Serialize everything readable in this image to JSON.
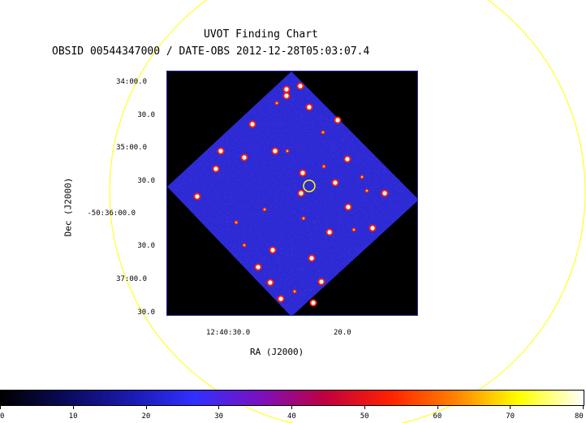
{
  "header": {
    "title": "UVOT Finding Chart",
    "subtitle": "OBSID 00544347000 / DATE-OBS 2012-12-28T05:03:07.4"
  },
  "axes": {
    "xlabel": "RA (J2000)",
    "ylabel": "Dec (J2000)",
    "xticks": [
      "12:40:30.0",
      "20.0"
    ],
    "yticks": [
      "34:00.0",
      "30.0",
      "35:00.0",
      "30.0",
      "-50:36:00.0",
      "30.0",
      "37:00.0",
      "30.0"
    ]
  },
  "colorbar": {
    "ticks": [
      "0",
      "10",
      "20",
      "30",
      "40",
      "50",
      "60",
      "70",
      "80"
    ],
    "colors": [
      "#000000",
      "#0a0a5a",
      "#1a1ab0",
      "#3030ff",
      "#7a10c0",
      "#c00040",
      "#ff2000",
      "#ff8000",
      "#ffff00",
      "#ffffff"
    ]
  },
  "colors": {
    "fov_circle": "#ffff00",
    "target_marker": "#ffff00",
    "sky_background": "#2828d8"
  }
}
